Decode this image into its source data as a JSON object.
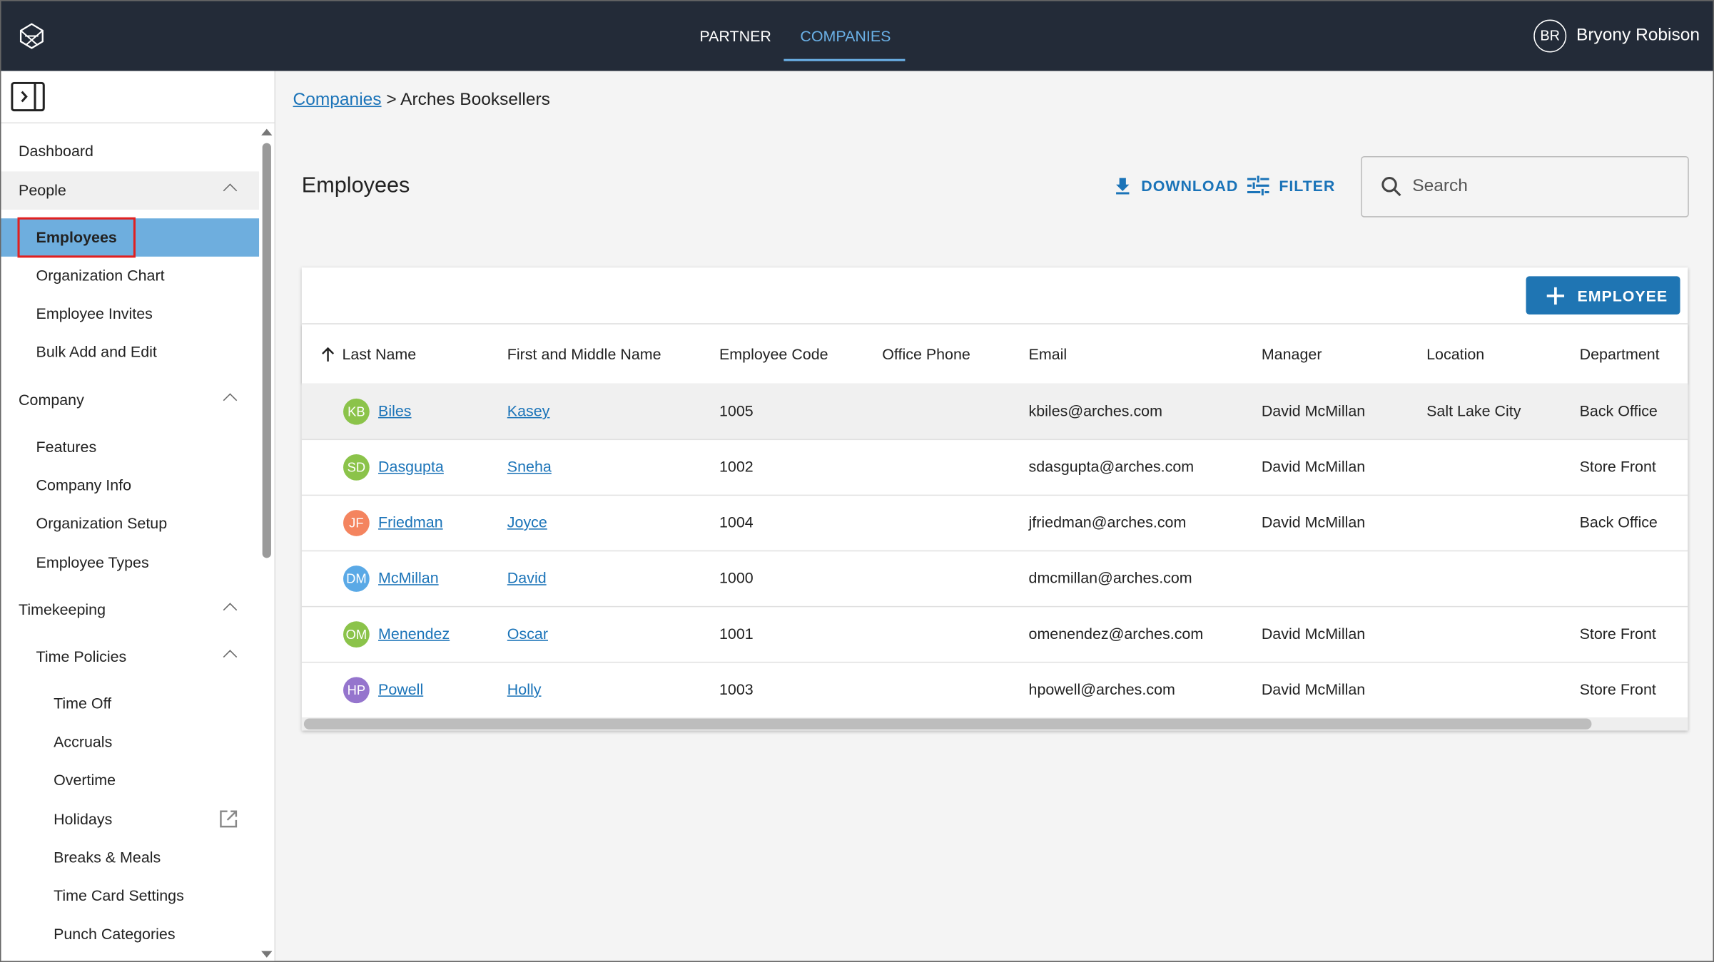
{
  "nav": {
    "tabs": [
      "PARTNER",
      "COMPANIES"
    ],
    "user_initials": "BR",
    "user_name": "Bryony Robison"
  },
  "sidebar": {
    "dashboard": "Dashboard",
    "people": {
      "title": "People",
      "items": [
        "Employees",
        "Organization Chart",
        "Employee Invites",
        "Bulk Add and Edit"
      ]
    },
    "company": {
      "title": "Company",
      "items": [
        "Features",
        "Company Info",
        "Organization Setup",
        "Employee Types"
      ]
    },
    "timekeeping": {
      "title": "Timekeeping",
      "time_policies": {
        "title": "Time Policies",
        "items": [
          "Time Off",
          "Accruals",
          "Overtime",
          "Holidays",
          "Breaks & Meals",
          "Time Card Settings",
          "Punch Categories"
        ]
      }
    }
  },
  "breadcrumb": {
    "link": "Companies",
    "separator": ">",
    "current": "Arches Booksellers"
  },
  "header": {
    "title": "Employees",
    "download": "DOWNLOAD",
    "filter": "FILTER",
    "search_placeholder": "Search",
    "add_button": "EMPLOYEE"
  },
  "table": {
    "columns": [
      "Last Name",
      "First and Middle Name",
      "Employee Code",
      "Office Phone",
      "Email",
      "Manager",
      "Location",
      "Department"
    ],
    "rows": [
      {
        "initials": "KB",
        "color": "#8bc34a",
        "last_name": "Biles",
        "first_name": "Kasey",
        "code": 1005,
        "phone": null,
        "email": "kbiles@arches.com",
        "manager": "David McMillan",
        "location": "Salt Lake City",
        "department": "Back Office"
      },
      {
        "initials": "SD",
        "color": "#8bc34a",
        "last_name": "Dasgupta",
        "first_name": "Sneha",
        "code": 1002,
        "phone": null,
        "email": "sdasgupta@arches.com",
        "manager": "David McMillan",
        "location": null,
        "department": "Store Front"
      },
      {
        "initials": "JF",
        "color": "#f4845f",
        "last_name": "Friedman",
        "first_name": "Joyce",
        "code": 1004,
        "phone": null,
        "email": "jfriedman@arches.com",
        "manager": "David McMillan",
        "location": null,
        "department": "Back Office"
      },
      {
        "initials": "DM",
        "color": "#5aa9e6",
        "last_name": "McMillan",
        "first_name": "David",
        "code": 1000,
        "phone": null,
        "email": "dmcmillan@arches.com",
        "manager": null,
        "location": null,
        "department": null
      },
      {
        "initials": "OM",
        "color": "#8bc34a",
        "last_name": "Menendez",
        "first_name": "Oscar",
        "code": 1001,
        "phone": null,
        "email": "omenendez@arches.com",
        "manager": "David McMillan",
        "location": null,
        "department": "Store Front"
      },
      {
        "initials": "HP",
        "color": "#9575cd",
        "last_name": "Powell",
        "first_name": "Holly",
        "code": 1003,
        "phone": null,
        "email": "hpowell@arches.com",
        "manager": "David McMillan",
        "location": null,
        "department": "Store Front"
      }
    ]
  }
}
